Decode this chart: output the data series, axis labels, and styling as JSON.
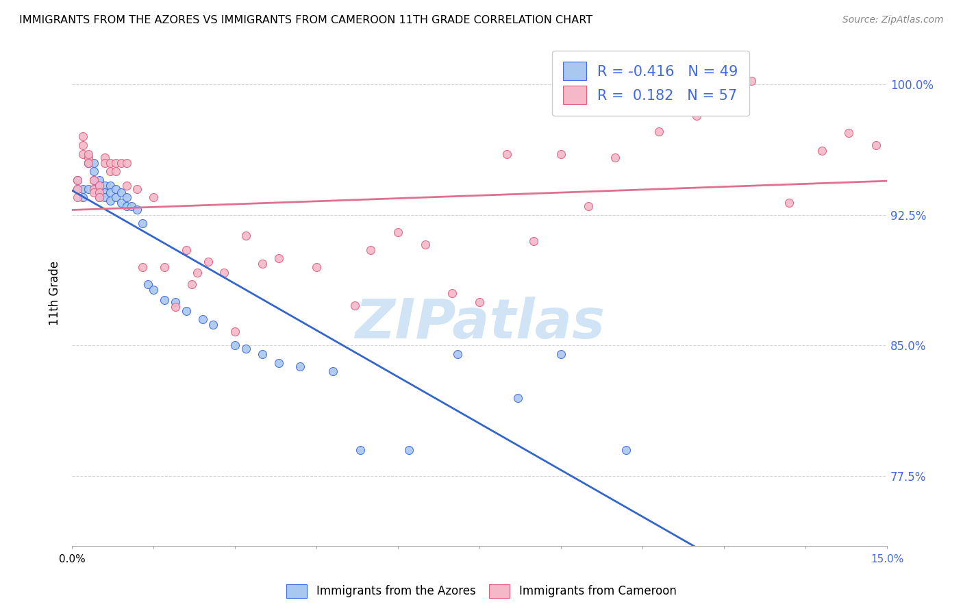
{
  "title": "IMMIGRANTS FROM THE AZORES VS IMMIGRANTS FROM CAMEROON 11TH GRADE CORRELATION CHART",
  "source": "Source: ZipAtlas.com",
  "ylabel": "11th Grade",
  "xlim": [
    0.0,
    0.15
  ],
  "ylim": [
    0.735,
    1.025
  ],
  "yticks": [
    0.775,
    0.85,
    0.925,
    1.0
  ],
  "xtick_left": "0.0%",
  "xtick_right": "15.0%",
  "color_azores_fill": "#a8c8f0",
  "color_azores_edge": "#4169e1",
  "color_cameroon_fill": "#f4b8c8",
  "color_cameroon_edge": "#e06080",
  "color_line_azores": "#3366cc",
  "color_line_cameroon": "#e07090",
  "watermark_text": "ZIPatlas",
  "watermark_color": "#d0e4f5",
  "legend_label_azores": "Immigrants from the Azores",
  "legend_label_cameroon": "Immigrants from Cameroon",
  "azores_x": [
    0.001,
    0.001,
    0.002,
    0.002,
    0.003,
    0.003,
    0.003,
    0.004,
    0.004,
    0.004,
    0.004,
    0.005,
    0.005,
    0.005,
    0.005,
    0.006,
    0.006,
    0.006,
    0.007,
    0.007,
    0.007,
    0.008,
    0.008,
    0.009,
    0.009,
    0.01,
    0.01,
    0.011,
    0.012,
    0.013,
    0.014,
    0.015,
    0.017,
    0.019,
    0.021,
    0.024,
    0.026,
    0.03,
    0.032,
    0.035,
    0.038,
    0.042,
    0.048,
    0.053,
    0.062,
    0.071,
    0.082,
    0.09,
    0.102
  ],
  "azores_y": [
    0.945,
    0.94,
    0.94,
    0.935,
    0.955,
    0.955,
    0.94,
    0.955,
    0.95,
    0.945,
    0.94,
    0.945,
    0.942,
    0.937,
    0.935,
    0.942,
    0.938,
    0.935,
    0.942,
    0.938,
    0.933,
    0.94,
    0.935,
    0.938,
    0.932,
    0.935,
    0.93,
    0.93,
    0.928,
    0.92,
    0.885,
    0.882,
    0.876,
    0.875,
    0.87,
    0.865,
    0.862,
    0.85,
    0.848,
    0.845,
    0.84,
    0.838,
    0.835,
    0.79,
    0.79,
    0.845,
    0.82,
    0.845,
    0.79
  ],
  "cameroon_x": [
    0.001,
    0.001,
    0.001,
    0.002,
    0.002,
    0.002,
    0.003,
    0.003,
    0.003,
    0.004,
    0.004,
    0.004,
    0.005,
    0.005,
    0.005,
    0.006,
    0.006,
    0.007,
    0.007,
    0.008,
    0.008,
    0.009,
    0.01,
    0.01,
    0.012,
    0.013,
    0.015,
    0.017,
    0.019,
    0.021,
    0.023,
    0.025,
    0.028,
    0.032,
    0.038,
    0.045,
    0.052,
    0.06,
    0.07,
    0.08,
    0.09,
    0.095,
    0.1,
    0.108,
    0.115,
    0.125,
    0.132,
    0.138,
    0.143,
    0.148,
    0.022,
    0.03,
    0.035,
    0.055,
    0.065,
    0.075,
    0.085
  ],
  "cameroon_y": [
    0.945,
    0.94,
    0.935,
    0.965,
    0.96,
    0.97,
    0.958,
    0.955,
    0.96,
    0.945,
    0.94,
    0.938,
    0.942,
    0.938,
    0.935,
    0.958,
    0.955,
    0.955,
    0.95,
    0.955,
    0.95,
    0.955,
    0.955,
    0.942,
    0.94,
    0.895,
    0.935,
    0.895,
    0.872,
    0.905,
    0.892,
    0.898,
    0.892,
    0.913,
    0.9,
    0.895,
    0.873,
    0.915,
    0.88,
    0.96,
    0.96,
    0.93,
    0.958,
    0.973,
    0.982,
    1.002,
    0.932,
    0.962,
    0.972,
    0.965,
    0.885,
    0.858,
    0.897,
    0.905,
    0.908,
    0.875,
    0.91
  ]
}
